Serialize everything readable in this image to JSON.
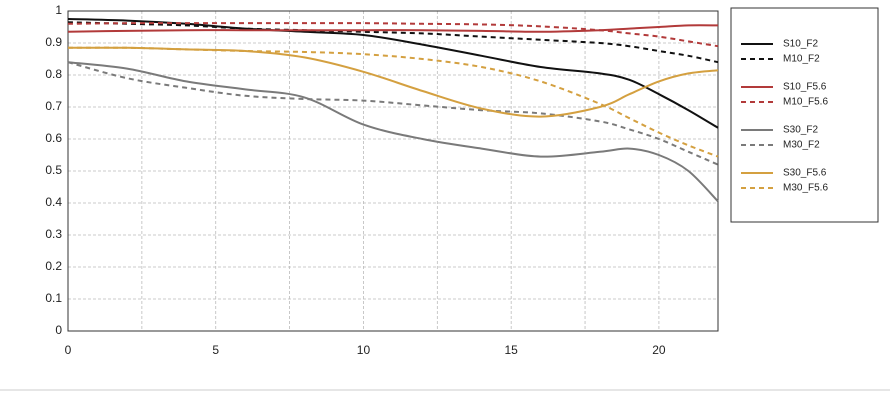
{
  "chart_data": {
    "type": "line",
    "x": [
      0,
      2,
      4,
      6,
      8,
      10,
      12,
      14,
      16,
      18,
      19,
      20,
      21,
      22
    ],
    "xlim": [
      0,
      22
    ],
    "xticks": [
      0,
      5,
      10,
      15,
      20
    ],
    "x_minor_ticks": [
      2.5,
      7.5,
      12.5,
      17.5
    ],
    "ylim": [
      0,
      1
    ],
    "yticks": [
      0,
      0.1,
      0.2,
      0.3,
      0.4,
      0.5,
      0.6,
      0.7,
      0.8,
      0.9,
      1
    ],
    "grid": true,
    "legend": "right",
    "series": [
      {
        "name": "S10_F2",
        "color": "#111111",
        "dash": false,
        "values": [
          0.975,
          0.97,
          0.96,
          0.945,
          0.935,
          0.925,
          0.895,
          0.86,
          0.825,
          0.805,
          0.785,
          0.74,
          0.69,
          0.635
        ]
      },
      {
        "name": "M10_F2",
        "color": "#111111",
        "dash": true,
        "values": [
          0.965,
          0.96,
          0.955,
          0.945,
          0.94,
          0.935,
          0.93,
          0.92,
          0.91,
          0.9,
          0.89,
          0.875,
          0.86,
          0.84
        ]
      },
      {
        "name": "S10_F5.6",
        "color": "#b23a3a",
        "dash": false,
        "values": [
          0.935,
          0.938,
          0.94,
          0.94,
          0.94,
          0.94,
          0.94,
          0.938,
          0.935,
          0.94,
          0.945,
          0.95,
          0.955,
          0.955
        ]
      },
      {
        "name": "M10_F5.6",
        "color": "#b23a3a",
        "dash": true,
        "values": [
          0.96,
          0.962,
          0.962,
          0.962,
          0.962,
          0.962,
          0.96,
          0.958,
          0.952,
          0.94,
          0.93,
          0.92,
          0.905,
          0.89
        ]
      },
      {
        "name": "S30_F2",
        "color": "#7a7a7a",
        "dash": false,
        "values": [
          0.84,
          0.82,
          0.78,
          0.755,
          0.73,
          0.645,
          0.6,
          0.57,
          0.545,
          0.56,
          0.57,
          0.55,
          0.5,
          0.405
        ]
      },
      {
        "name": "M30_F2",
        "color": "#7a7a7a",
        "dash": true,
        "values": [
          0.84,
          0.79,
          0.76,
          0.735,
          0.725,
          0.72,
          0.705,
          0.69,
          0.68,
          0.655,
          0.63,
          0.6,
          0.56,
          0.52
        ]
      },
      {
        "name": "S30_F5.6",
        "color": "#d4a040",
        "dash": false,
        "values": [
          0.885,
          0.885,
          0.88,
          0.875,
          0.855,
          0.81,
          0.75,
          0.695,
          0.67,
          0.7,
          0.74,
          0.78,
          0.805,
          0.815
        ]
      },
      {
        "name": "M30_F5.6",
        "color": "#d4a040",
        "dash": true,
        "values": [
          0.885,
          0.885,
          0.88,
          0.875,
          0.872,
          0.865,
          0.85,
          0.825,
          0.78,
          0.71,
          0.665,
          0.62,
          0.58,
          0.545
        ]
      }
    ]
  }
}
